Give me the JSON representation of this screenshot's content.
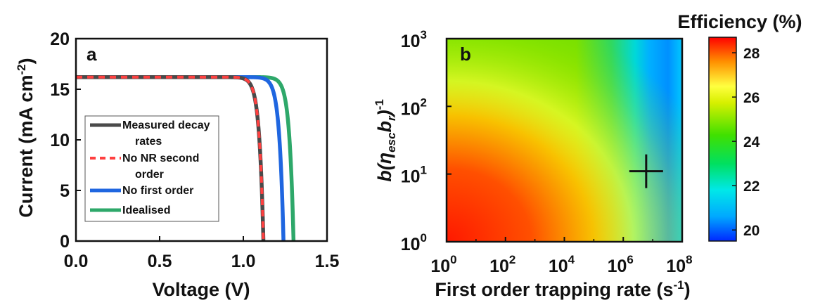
{
  "chart_data": [
    {
      "type": "line",
      "panel_label": "a",
      "xlabel": "Voltage (V)",
      "ylabel_main": "Current (mA cm",
      "ylabel_sup": "-2",
      "ylabel_close": ")",
      "xlim": [
        0.0,
        1.5
      ],
      "ylim": [
        0,
        20
      ],
      "xticks": [
        "0.0",
        "0.5",
        "1.0",
        "1.5"
      ],
      "yticks": [
        "0",
        "5",
        "10",
        "15",
        "20"
      ],
      "legend_position": "lower-left",
      "series": [
        {
          "name_line1": "Measured decay",
          "name_line2": "rates",
          "color": "#4a4a4a",
          "dash": "solid",
          "jsc": 16.2,
          "voc": 1.12
        },
        {
          "name_line1": "No NR second",
          "name_line2": "order",
          "color": "#ff4040",
          "dash": "dashed",
          "jsc": 16.2,
          "voc": 1.12
        },
        {
          "name_line1": "No first order",
          "name_line2": "",
          "color": "#1f66e0",
          "dash": "solid",
          "jsc": 16.2,
          "voc": 1.24
        },
        {
          "name_line1": "Idealised",
          "name_line2": "",
          "color": "#2ea86a",
          "dash": "solid",
          "jsc": 16.2,
          "voc": 1.3
        }
      ]
    },
    {
      "type": "heatmap",
      "panel_label": "b",
      "xlabel": "First order trapping rate (s",
      "xlabel_sup": "-1",
      "xlabel_close": ")",
      "ylabel": "b(ηescbr)-1",
      "x_scale": "log",
      "y_scale": "log",
      "xlim": [
        1,
        100000000
      ],
      "ylim": [
        1,
        1000
      ],
      "xtick_exponents": [
        "0",
        "2",
        "4",
        "6",
        "8"
      ],
      "ytick_exponents": [
        "0",
        "1",
        "2",
        "3"
      ],
      "tick_base": "10",
      "marker": {
        "x": 6000000,
        "y": 11,
        "symbol": "+"
      },
      "colorbar": {
        "label": "Efficiency (%)",
        "min": 19.5,
        "max": 28.7,
        "ticks": [
          "20",
          "22",
          "24",
          "26",
          "28"
        ]
      }
    }
  ]
}
